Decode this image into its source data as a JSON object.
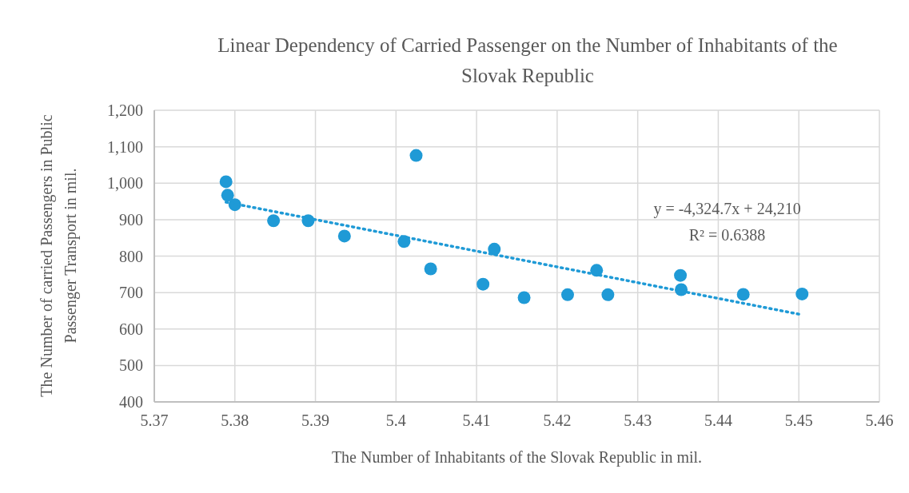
{
  "chart_data": {
    "type": "scatter",
    "title": "Linear Dependency of Carried Passenger on the Number of Inhabitants of the Slovak Republic",
    "xlabel": "The Number of Inhabitants of the Slovak Republic in mil.",
    "ylabel": "The Number of carried Passengers in Public Passenger Transport in mil.",
    "series": [
      {
        "color": "#1f9ad6",
        "marker": "circle",
        "x": [
          5.3789,
          5.3791,
          5.38,
          5.3848,
          5.3891,
          5.3936,
          5.401,
          5.4025,
          5.4043,
          5.4108,
          5.4122,
          5.4159,
          5.4213,
          5.4249,
          5.4263,
          5.4353,
          5.4354,
          5.4431,
          5.4504
        ],
        "values": [
          1004,
          967,
          941,
          897,
          897,
          855,
          840,
          1076,
          765,
          723,
          819,
          686,
          694,
          761,
          694,
          747,
          708,
          695,
          696
        ]
      },
      {
        "type": "line",
        "color": "#1f9ad6",
        "marker": "none",
        "line_style": "dotted",
        "x": [
          5.3789,
          5.4504
        ],
        "values": [
          948,
          639
        ]
      }
    ],
    "annotations": [
      "y = -4,324.7x + 24,210",
      "R² = 0.6388"
    ],
    "xlim": [
      5.37,
      5.46
    ],
    "xticks": [
      5.37,
      5.38,
      5.39,
      5.4,
      5.41,
      5.42,
      5.43,
      5.44,
      5.45,
      5.46
    ],
    "ylim": [
      400,
      1200
    ],
    "yticks": [
      400,
      500,
      600,
      700,
      800,
      900,
      {
        "value": 1000,
        "label": "1,000"
      },
      {
        "value": 1100,
        "label": "1,100"
      },
      {
        "value": 1200,
        "label": "1,200"
      }
    ],
    "grid": true,
    "legend": false
  }
}
